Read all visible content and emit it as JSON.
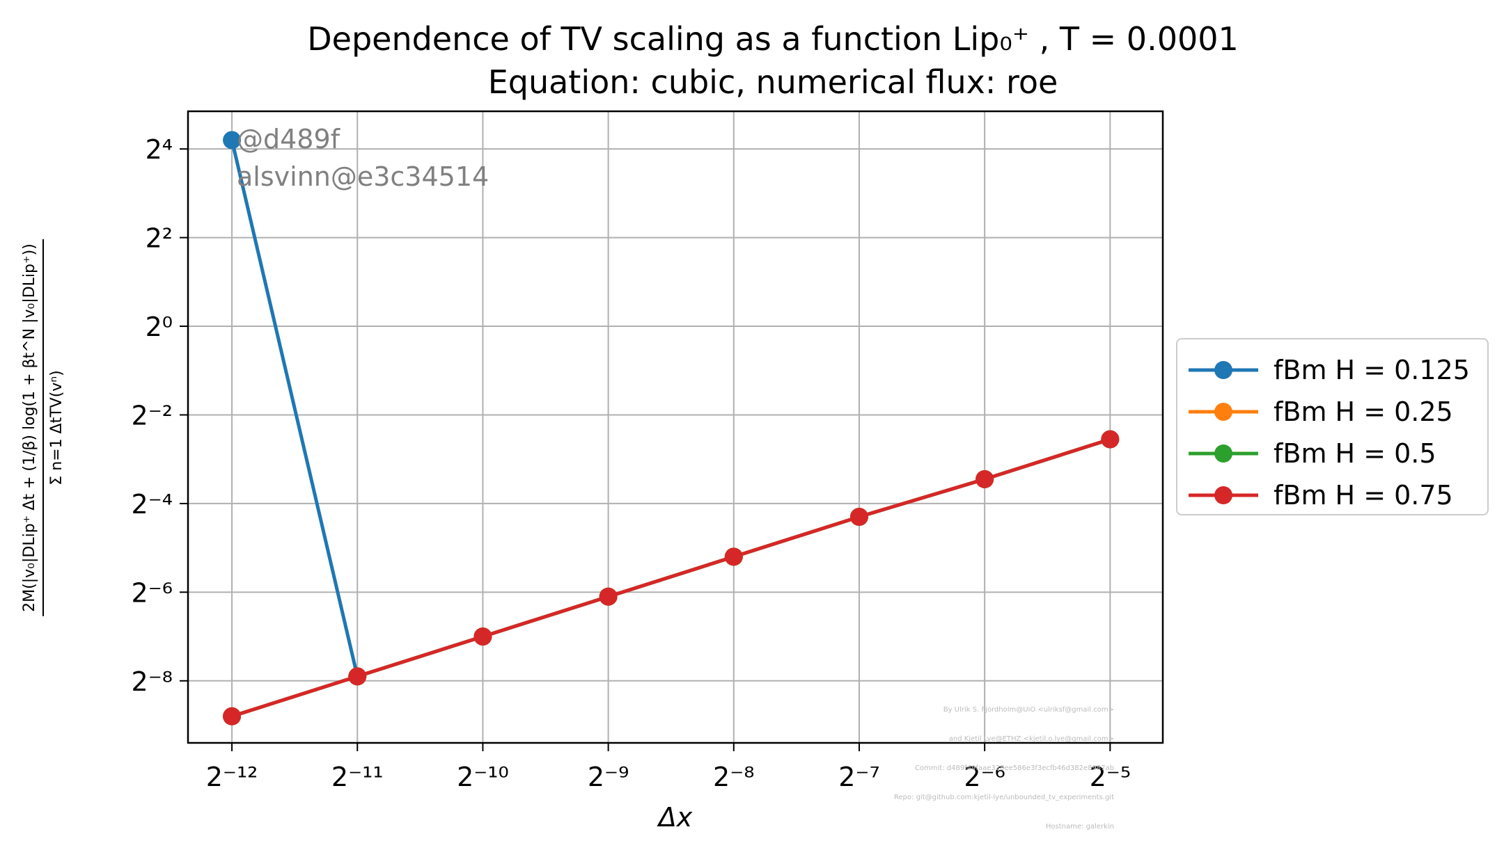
{
  "title_lines": [
    "Dependence of TV scaling as a function Lip₀⁺ , T = 0.0001",
    "Equation: cubic, numerical flux: roe"
  ],
  "watermark": [
    "@d489f",
    "alsvinn@e3c34514"
  ],
  "credits": [
    "By Ulrik S. Fjordholm@UiO <ulriksf@gmail.com>",
    "and Kjetil Lye@ETHZ <kjetil.o.lye@gmail.com>",
    "Commit: d489f49faae328ee586e3f3ecfb46d382e8987ab",
    "Repo: git@github.com:kjetil-lye/unbounded_tv_experiments.git",
    "Hostname: galerkin"
  ],
  "ylabel": {
    "numerator": "2M(|v₀|DLip⁺ Δt + (1/β) log(1 + βt^N |v₀|DLip⁺))",
    "denominator": "Σ n=1 ΔtTV(vⁿ)"
  },
  "chart_data": {
    "type": "line",
    "title": "Dependence of TV scaling as a function Lip₀⁺ , T = 0.0001",
    "subtitle": "Equation: cubic, numerical flux: roe",
    "xlabel": "Δx",
    "ylabel": "2M(|v₀|DLip⁺ Δt + (1/β) log(1 + βt^N |v₀|DLip⁺)) / Σ ΔtTV(vⁿ)",
    "x_scale": "log2",
    "y_scale": "log2",
    "x_tick_exponents": [
      -12,
      -11,
      -10,
      -9,
      -8,
      -7,
      -6,
      -5
    ],
    "y_tick_exponents": [
      -8,
      -6,
      -4,
      -2,
      0,
      2,
      4
    ],
    "x_tick_labels": [
      "2⁻¹²",
      "2⁻¹¹",
      "2⁻¹⁰",
      "2⁻⁹",
      "2⁻⁸",
      "2⁻⁷",
      "2⁻⁶",
      "2⁻⁵"
    ],
    "y_tick_labels": [
      "2⁻⁸",
      "2⁻⁶",
      "2⁻⁴",
      "2⁻²",
      "2⁰",
      "2²",
      "2⁴"
    ],
    "xlim_log2": [
      -12.35,
      -4.58
    ],
    "ylim_log2": [
      -9.4,
      4.85
    ],
    "grid": true,
    "legend_placement": "outside-right",
    "x": [
      0.000244,
      0.000488,
      0.000977,
      0.00195,
      0.00391,
      0.00781,
      0.0156,
      0.03125
    ],
    "series": [
      {
        "name": "fBm H = 0.125",
        "color": "#1f77b4",
        "log2_values": [
          4.2,
          -7.9,
          -7.0,
          -6.1,
          -5.2,
          -4.3,
          -3.45,
          -2.55
        ]
      },
      {
        "name": "fBm H = 0.25",
        "color": "#ff7f0e",
        "log2_values": [
          -8.8,
          -7.9,
          -7.0,
          -6.1,
          -5.2,
          -4.3,
          -3.45,
          -2.55
        ]
      },
      {
        "name": "fBm H = 0.5",
        "color": "#2ca02c",
        "log2_values": [
          -8.8,
          -7.9,
          -7.0,
          -6.1,
          -5.2,
          -4.3,
          -3.45,
          -2.55
        ]
      },
      {
        "name": "fBm H = 0.75",
        "color": "#d62728",
        "log2_values": [
          -8.8,
          -7.9,
          -7.0,
          -6.1,
          -5.2,
          -4.3,
          -3.45,
          -2.55
        ]
      }
    ]
  }
}
